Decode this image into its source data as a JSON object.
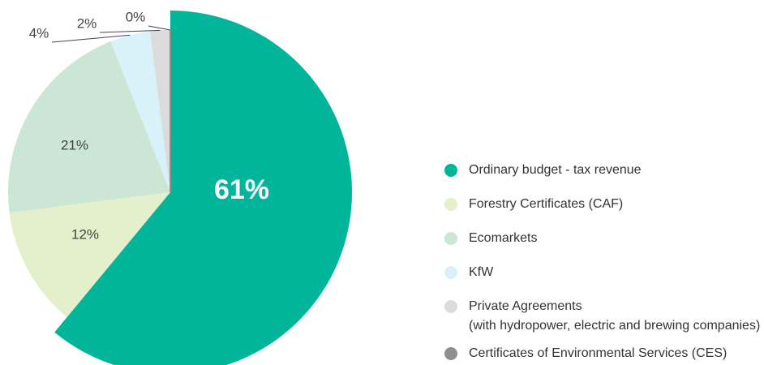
{
  "chart_data": {
    "type": "pie",
    "categories": [
      "Ordinary budget - tax revenue",
      "Forestry Certificates (CAF)",
      "Ecomarkets",
      "KfW",
      "Private Agreements\n(with hydropower, electric and brewing companies)",
      "Certificates of Environmental Services (CES)"
    ],
    "values": [
      61,
      12,
      21,
      4,
      2,
      0
    ],
    "value_labels": [
      "61%",
      "12%",
      "21%",
      "4%",
      "2%",
      "0%"
    ],
    "colors": [
      "#00b59a",
      "#e4f0cc",
      "#cbe6d4",
      "#d9f1f9",
      "#dcdbdc",
      "#8f8f8f"
    ],
    "legend": "right"
  }
}
